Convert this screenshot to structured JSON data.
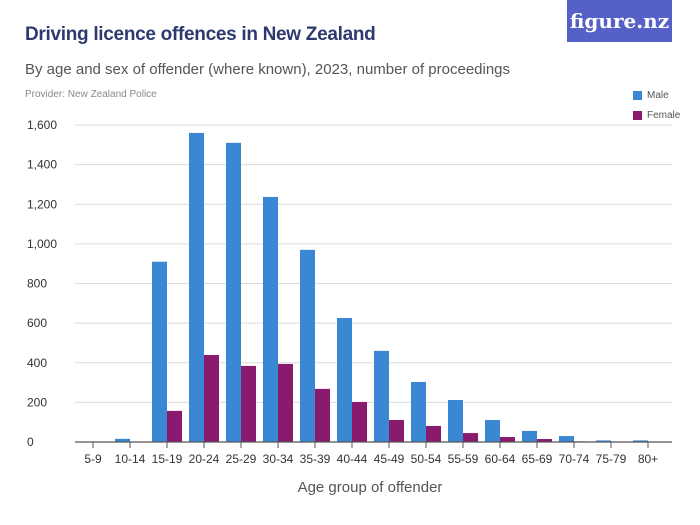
{
  "title": "Driving licence offences in New Zealand",
  "subtitle": "By age and sex of offender (where known), 2023, number of proceedings",
  "provider": "Provider: New Zealand Police",
  "logo": "figure.nz",
  "chart_data": {
    "type": "bar",
    "title": "Driving licence offences in New Zealand",
    "xlabel": "Age group of offender",
    "ylabel": "",
    "ylim": [
      0,
      1600
    ],
    "yticks": [
      0,
      200,
      400,
      600,
      800,
      1000,
      1200,
      1400,
      1600
    ],
    "ytick_labels": [
      "0",
      "200",
      "400",
      "600",
      "800",
      "1,000",
      "1,200",
      "1,400",
      "1,600"
    ],
    "grid": true,
    "legend_position": "top-right",
    "categories": [
      "5-9",
      "10-14",
      "15-19",
      "20-24",
      "25-29",
      "30-34",
      "35-39",
      "40-44",
      "45-49",
      "50-54",
      "55-59",
      "60-64",
      "65-69",
      "70-74",
      "75-79",
      "80+"
    ],
    "series": [
      {
        "name": "Male",
        "color": "#3a87d4",
        "values": [
          2,
          16,
          910,
          1560,
          1510,
          1237,
          970,
          626,
          460,
          303,
          212,
          111,
          56,
          30,
          8,
          8
        ]
      },
      {
        "name": "Female",
        "color": "#8a1a6e",
        "values": [
          0,
          1,
          157,
          439,
          384,
          394,
          268,
          202,
          111,
          81,
          45,
          25,
          15,
          3,
          2,
          2
        ]
      }
    ]
  }
}
